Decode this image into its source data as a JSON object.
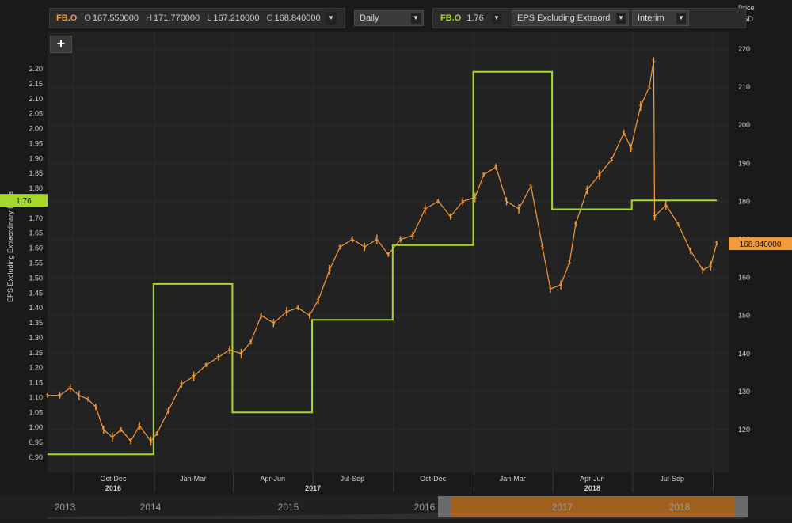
{
  "toolbar": {
    "price_symbol": "FB.O",
    "open_label": "O",
    "open": "167.550000",
    "high_label": "H",
    "high": "171.770000",
    "low_label": "L",
    "low": "167.210000",
    "close_label": "C",
    "close": "168.840000",
    "interval": "Daily",
    "eps_symbol": "FB.O",
    "eps_value": "1.76",
    "eps_field": "EPS Excluding Extraord",
    "period": "Interim",
    "arrow_glyph": "▼",
    "add_glyph": "+"
  },
  "colors": {
    "price": "#f39a3c",
    "eps": "#a6d82b",
    "grid": "#2c2c2c",
    "background": "#1a1a1a"
  },
  "chart_data": {
    "type": "line",
    "left_axis_label": "EPS Excluding Extraordinary Items",
    "right_axis_title": "Price",
    "right_axis_unit": "USD",
    "left_axis": {
      "ylim": [
        0.88,
        2.25
      ],
      "ticks": [
        "0.90",
        "0.95",
        "1.00",
        "1.05",
        "1.10",
        "1.15",
        "1.20",
        "1.25",
        "1.30",
        "1.35",
        "1.40",
        "1.45",
        "1.50",
        "1.55",
        "1.60",
        "1.65",
        "1.70",
        "1.75",
        "1.80",
        "1.85",
        "1.90",
        "1.95",
        "2.00",
        "2.05",
        "2.10",
        "2.15",
        "2.20"
      ]
    },
    "right_axis": {
      "ylim": [
        112,
        222
      ],
      "ticks": [
        "120",
        "130",
        "140",
        "150",
        "160",
        "170",
        "180",
        "190",
        "200",
        "210",
        "220"
      ]
    },
    "x_axis": {
      "quarters": [
        "Oct-Dec",
        "Jan-Mar",
        "Apr-Jun",
        "Jul-Sep",
        "Oct-Dec",
        "Jan-Mar",
        "Apr-Jun",
        "Jul-Sep"
      ],
      "years": [
        "2016",
        "2017",
        "2018"
      ]
    },
    "last_eps_label": "1.76",
    "last_price_label": "168.840000",
    "grid": true,
    "series": [
      {
        "name": "FB.O EPS Excluding Extraord",
        "axis": "left",
        "style": "step",
        "points": [
          [
            "2016-09-01",
            0.91
          ],
          [
            "2016-12-31",
            0.91
          ],
          [
            "2016-12-31",
            1.48
          ],
          [
            "2017-03-31",
            1.48
          ],
          [
            "2017-03-31",
            1.05
          ],
          [
            "2017-06-30",
            1.05
          ],
          [
            "2017-06-30",
            1.36
          ],
          [
            "2017-09-30",
            1.36
          ],
          [
            "2017-09-30",
            1.61
          ],
          [
            "2017-12-31",
            1.61
          ],
          [
            "2017-12-31",
            2.19
          ],
          [
            "2018-03-31",
            2.19
          ],
          [
            "2018-03-31",
            1.73
          ],
          [
            "2018-06-30",
            1.73
          ],
          [
            "2018-06-30",
            1.76
          ],
          [
            "2018-10-05",
            1.76
          ]
        ]
      },
      {
        "name": "FB.O",
        "axis": "right",
        "style": "ohlc",
        "points": [
          [
            "2016-09-01",
            129
          ],
          [
            "2016-09-15",
            129
          ],
          [
            "2016-09-27",
            131
          ],
          [
            "2016-10-07",
            129
          ],
          [
            "2016-10-17",
            128
          ],
          [
            "2016-10-26",
            126
          ],
          [
            "2016-11-04",
            120
          ],
          [
            "2016-11-14",
            118
          ],
          [
            "2016-11-24",
            120
          ],
          [
            "2016-12-05",
            117
          ],
          [
            "2016-12-15",
            121
          ],
          [
            "2016-12-28",
            117
          ],
          [
            "2017-01-04",
            119
          ],
          [
            "2017-01-17",
            125
          ],
          [
            "2017-02-01",
            132
          ],
          [
            "2017-02-15",
            134
          ],
          [
            "2017-03-01",
            137
          ],
          [
            "2017-03-15",
            139
          ],
          [
            "2017-03-28",
            141
          ],
          [
            "2017-04-10",
            140
          ],
          [
            "2017-04-21",
            143
          ],
          [
            "2017-05-03",
            150
          ],
          [
            "2017-05-17",
            148
          ],
          [
            "2017-06-01",
            151
          ],
          [
            "2017-06-14",
            152
          ],
          [
            "2017-06-27",
            150
          ],
          [
            "2017-07-07",
            154
          ],
          [
            "2017-07-20",
            162
          ],
          [
            "2017-08-01",
            168
          ],
          [
            "2017-08-15",
            170
          ],
          [
            "2017-08-29",
            168
          ],
          [
            "2017-09-12",
            170
          ],
          [
            "2017-09-25",
            166
          ],
          [
            "2017-10-09",
            170
          ],
          [
            "2017-10-23",
            171
          ],
          [
            "2017-11-06",
            178
          ],
          [
            "2017-11-21",
            180
          ],
          [
            "2017-12-05",
            176
          ],
          [
            "2017-12-19",
            180
          ],
          [
            "2018-01-02",
            181
          ],
          [
            "2018-01-12",
            187
          ],
          [
            "2018-01-26",
            189
          ],
          [
            "2018-02-07",
            180
          ],
          [
            "2018-02-21",
            178
          ],
          [
            "2018-03-07",
            184
          ],
          [
            "2018-03-20",
            168
          ],
          [
            "2018-03-29",
            157
          ],
          [
            "2018-04-10",
            158
          ],
          [
            "2018-04-20",
            164
          ],
          [
            "2018-04-27",
            174
          ],
          [
            "2018-05-10",
            183
          ],
          [
            "2018-05-24",
            187
          ],
          [
            "2018-06-07",
            191
          ],
          [
            "2018-06-21",
            198
          ],
          [
            "2018-06-29",
            194
          ],
          [
            "2018-07-10",
            205
          ],
          [
            "2018-07-20",
            210
          ],
          [
            "2018-07-25",
            217
          ],
          [
            "2018-07-26",
            176
          ],
          [
            "2018-08-08",
            179
          ],
          [
            "2018-08-22",
            174
          ],
          [
            "2018-09-05",
            167
          ],
          [
            "2018-09-19",
            162
          ],
          [
            "2018-09-28",
            163
          ],
          [
            "2018-10-05",
            169
          ]
        ]
      }
    ],
    "navigator_years": [
      "2013",
      "2014",
      "2015",
      "2016",
      "2017",
      "2018"
    ]
  }
}
